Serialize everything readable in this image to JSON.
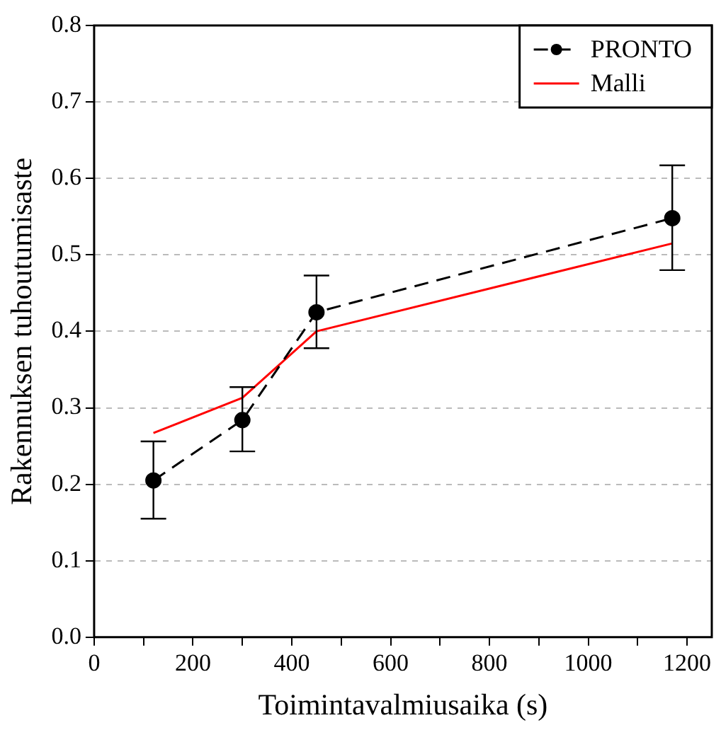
{
  "chart_data": {
    "type": "line",
    "xlabel": "Toimintavalmiusaika (s)",
    "ylabel": "Rakennuksen tuhoutumisaste",
    "x": [
      120,
      300,
      450,
      1170
    ],
    "series": [
      {
        "name": "PRONTO",
        "color": "#000000",
        "values": [
          0.205,
          0.284,
          0.425,
          0.548
        ],
        "errors": [
          [
            0.155,
            0.256
          ],
          [
            0.243,
            0.327
          ],
          [
            0.378,
            0.473
          ],
          [
            0.48,
            0.617
          ]
        ],
        "marker": "circle",
        "line_style": "dashed"
      },
      {
        "name": "Malli",
        "color": "#ff0000",
        "values": [
          0.267,
          0.313,
          0.4,
          0.515
        ],
        "marker": "none",
        "line_style": "solid"
      }
    ],
    "xlim": [
      0,
      1250
    ],
    "xticks": [
      0,
      {
        "value": 100,
        "label": null
      },
      200,
      {
        "value": 300,
        "label": null
      },
      400,
      {
        "value": 500,
        "label": null
      },
      600,
      {
        "value": 700,
        "label": null
      },
      800,
      {
        "value": 900,
        "label": null
      },
      1000,
      {
        "value": 1100,
        "label": null
      },
      1200
    ],
    "ylim": [
      0,
      0.8
    ],
    "yticks": [
      {
        "value": 0,
        "label": "0.0"
      },
      {
        "value": 0.1,
        "label": "0.1"
      },
      {
        "value": 0.2,
        "label": "0.2"
      },
      {
        "value": 0.3,
        "label": "0.3"
      },
      {
        "value": 0.4,
        "label": "0.4"
      },
      {
        "value": 0.5,
        "label": "0.5"
      },
      {
        "value": 0.6,
        "label": "0.6"
      },
      {
        "value": 0.7,
        "label": "0.7"
      },
      {
        "value": 0.8,
        "label": "0.8"
      }
    ],
    "grid": "y",
    "legend": "top right"
  }
}
